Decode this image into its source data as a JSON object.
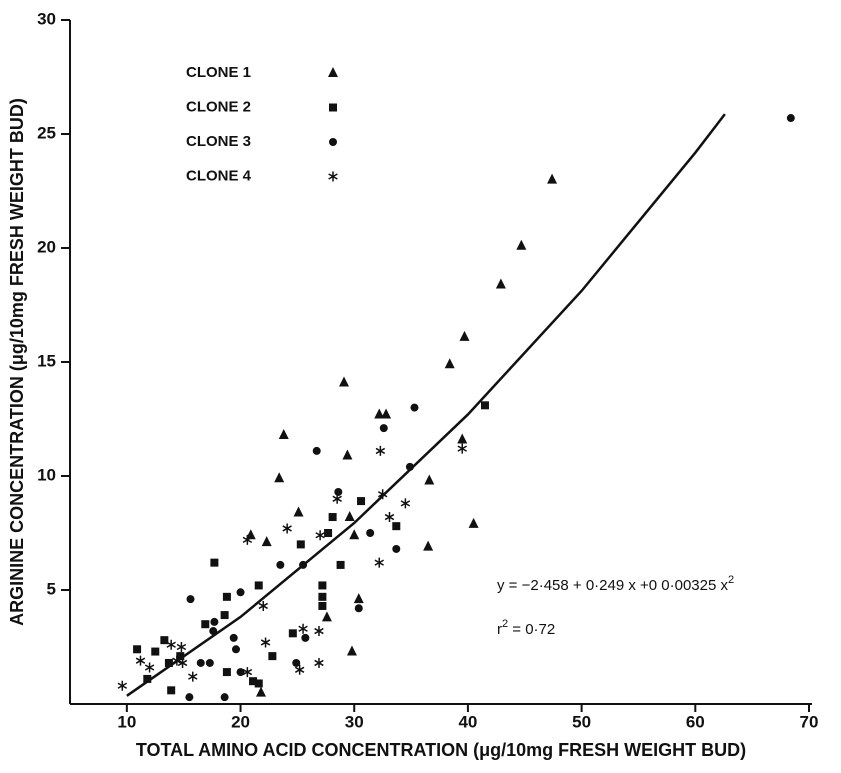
{
  "chart_data": {
    "type": "scatter",
    "x_label": "TOTAL AMINO ACID CONCENTRATION (μg/10mg FRESH WEIGHT BUD)",
    "y_label": "ARGININE CONCENTRATION (μg/10mg FRESH WEIGHT BUD)",
    "xlim": [
      5,
      70
    ],
    "ylim": [
      0,
      30
    ],
    "xticks": [
      10,
      20,
      30,
      40,
      50,
      60,
      70
    ],
    "yticks": [
      5,
      10,
      15,
      20,
      25,
      30
    ],
    "legend": "top-left",
    "series": [
      {
        "name": "CLONE 1",
        "marker": "triangle",
        "color": "#111111",
        "x": [
          47.4,
          44.7,
          42.9,
          39.7,
          38.4,
          39.5,
          36.6,
          40.5,
          36.5,
          29.1,
          32.2,
          32.8,
          23.8,
          29.4,
          23.4,
          29.6,
          30.0,
          25.1,
          20.9,
          22.3,
          30.4,
          29.8,
          27.6,
          21.8
        ],
        "values": [
          23.0,
          20.1,
          18.4,
          16.1,
          14.9,
          11.6,
          9.8,
          7.9,
          6.9,
          14.1,
          12.7,
          12.7,
          11.8,
          10.9,
          9.9,
          8.2,
          7.4,
          8.4,
          7.4,
          7.1,
          4.6,
          2.3,
          3.8,
          0.5
        ]
      },
      {
        "name": "CLONE 2",
        "marker": "square",
        "color": "#111111",
        "x": [
          10.9,
          11.8,
          12.5,
          13.3,
          13.7,
          13.9,
          14.7,
          16.9,
          17.7,
          18.8,
          18.6,
          18.8,
          21.1,
          21.6,
          21.6,
          22.8,
          24.6,
          25.3,
          27.2,
          27.2,
          27.2,
          27.7,
          28.1,
          28.8,
          30.6,
          33.7,
          41.5
        ],
        "values": [
          2.4,
          1.1,
          2.3,
          2.8,
          1.8,
          0.6,
          2.1,
          3.5,
          6.2,
          4.7,
          3.9,
          1.4,
          1.0,
          5.2,
          0.9,
          2.1,
          3.1,
          7.0,
          5.2,
          4.7,
          4.3,
          7.5,
          8.2,
          6.1,
          8.9,
          7.8,
          13.1
        ]
      },
      {
        "name": "CLONE 3",
        "marker": "circle",
        "color": "#111111",
        "x": [
          68.4,
          35.3,
          32.6,
          26.7,
          28.6,
          34.9,
          31.4,
          33.7,
          30.4,
          15.6,
          20.0,
          23.5,
          25.5,
          17.7,
          17.6,
          19.4,
          19.6,
          16.5,
          17.3,
          20.0,
          15.5,
          18.6,
          24.9,
          25.7
        ],
        "values": [
          25.7,
          13.0,
          12.1,
          11.1,
          9.3,
          10.4,
          7.5,
          6.8,
          4.2,
          4.6,
          4.9,
          6.1,
          6.1,
          3.6,
          3.2,
          2.9,
          2.4,
          1.8,
          1.8,
          1.4,
          0.3,
          0.3,
          1.8,
          2.9
        ]
      },
      {
        "name": "CLONE 4",
        "marker": "star",
        "color": "#111111",
        "x": [
          9.6,
          11.2,
          12.0,
          13.9,
          14.4,
          14.8,
          14.9,
          15.8,
          20.6,
          24.1,
          22.0,
          22.2,
          20.6,
          25.5,
          26.9,
          25.2,
          26.9,
          27.0,
          28.5,
          32.3,
          32.5,
          33.1,
          34.5,
          32.2,
          39.5
        ],
        "values": [
          0.8,
          1.9,
          1.6,
          2.6,
          1.9,
          2.5,
          1.8,
          1.2,
          7.2,
          7.7,
          4.3,
          2.7,
          1.4,
          3.3,
          3.2,
          1.5,
          1.8,
          7.4,
          9.0,
          11.1,
          9.2,
          8.2,
          8.8,
          6.2,
          11.2
        ]
      }
    ],
    "fit": {
      "x": [
        10,
        20,
        30,
        40,
        50,
        60,
        62.6
      ],
      "y": [
        0.36,
        3.82,
        7.94,
        12.7,
        18.12,
        24.18,
        25.87
      ],
      "color": "#111111"
    },
    "equation": {
      "text": "y = −2·458 + 0·249 x +0 0·00325 x",
      "sup": "2"
    },
    "r_squared": {
      "text": "r",
      "sup": "2",
      "rest": " = 0·72"
    }
  }
}
